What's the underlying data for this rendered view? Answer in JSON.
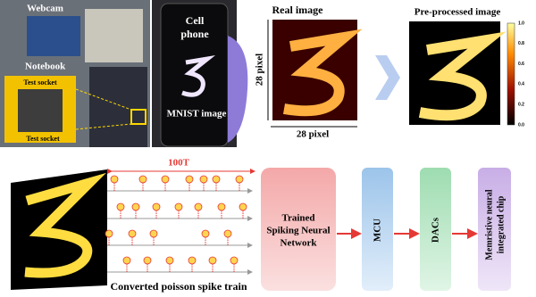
{
  "photo": {
    "webcam": "Webcam",
    "notebook": "Notebook",
    "socket_top": "Test socket",
    "socket_bottom": "Test socket",
    "phone": [
      "Cell",
      "phone"
    ],
    "mnist": "MNIST image"
  },
  "real_image": {
    "title": "Real image",
    "y_label": "28 pixel",
    "x_label": "28 pixel"
  },
  "preprocessed": {
    "title": "Pre-processed image",
    "colorbar_ticks": [
      "1.0",
      "0.8",
      "0.6",
      "0.4",
      "0.2",
      "0.0"
    ]
  },
  "spike_train": {
    "duration": "100T",
    "caption": "Converted poisson spike train"
  },
  "pipeline": {
    "snn": [
      "Trained",
      "Spiking Neural",
      "Network"
    ],
    "mcu": "MCU",
    "dacs": "DACs",
    "chip": [
      "Memristive neural",
      "integrated chip"
    ]
  }
}
